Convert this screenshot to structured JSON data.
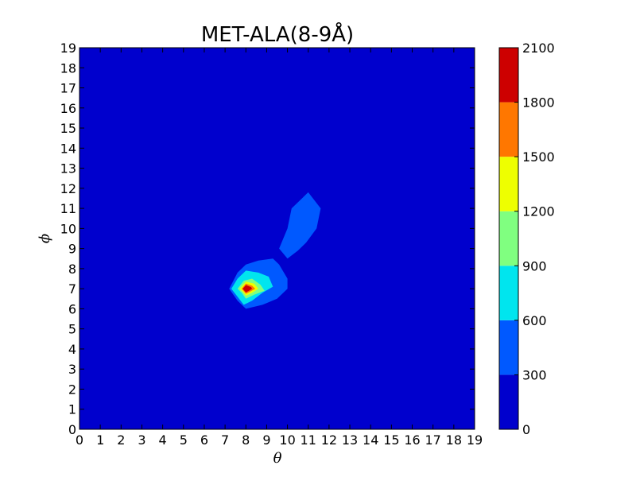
{
  "chart_data": {
    "type": "contourf",
    "title": "MET-ALA(8-9Å)",
    "xlabel": "θ",
    "ylabel": "ϕ",
    "xlim": [
      0,
      19
    ],
    "ylim": [
      0,
      19
    ],
    "xticks": [
      0,
      1,
      2,
      3,
      4,
      5,
      6,
      7,
      8,
      9,
      10,
      11,
      12,
      13,
      14,
      15,
      16,
      17,
      18,
      19
    ],
    "yticks": [
      0,
      1,
      2,
      3,
      4,
      5,
      6,
      7,
      8,
      9,
      10,
      11,
      12,
      13,
      14,
      15,
      16,
      17,
      18,
      19
    ],
    "grid": false,
    "colorbar": {
      "ticks": [
        0,
        300,
        600,
        900,
        1200,
        1500,
        1800,
        2100
      ],
      "levels": [
        0,
        300,
        600,
        900,
        1200,
        1500,
        1800,
        2100
      ],
      "colors": [
        "#0000cd",
        "#0059ff",
        "#00e5ee",
        "#80ff80",
        "#eeff00",
        "#ff7700",
        "#cd0000"
      ]
    },
    "contour_regions": [
      {
        "level_index": 1,
        "range": [
          300,
          600
        ],
        "polygon": [
          [
            7.2,
            7.0
          ],
          [
            7.6,
            7.8
          ],
          [
            8.0,
            8.2
          ],
          [
            8.6,
            8.4
          ],
          [
            9.3,
            8.5
          ],
          [
            9.6,
            8.2
          ],
          [
            10.0,
            7.5
          ],
          [
            10.0,
            7.0
          ],
          [
            9.5,
            6.5
          ],
          [
            8.8,
            6.2
          ],
          [
            8.0,
            6.0
          ],
          [
            7.6,
            6.4
          ]
        ]
      },
      {
        "level_index": 1,
        "range": [
          300,
          600
        ],
        "polygon": [
          [
            9.6,
            9.0
          ],
          [
            10.0,
            10.0
          ],
          [
            10.2,
            11.0
          ],
          [
            10.7,
            11.5
          ],
          [
            11.0,
            11.8
          ],
          [
            11.6,
            11.0
          ],
          [
            11.4,
            10.0
          ],
          [
            10.9,
            9.3
          ],
          [
            10.5,
            8.9
          ],
          [
            10.0,
            8.5
          ]
        ]
      },
      {
        "level_index": 2,
        "range": [
          600,
          900
        ],
        "polygon": [
          [
            7.3,
            7.0
          ],
          [
            7.6,
            7.5
          ],
          [
            8.0,
            7.9
          ],
          [
            8.6,
            7.8
          ],
          [
            9.1,
            7.6
          ],
          [
            9.3,
            7.1
          ],
          [
            8.8,
            6.8
          ],
          [
            8.3,
            6.4
          ],
          [
            7.9,
            6.2
          ],
          [
            7.6,
            6.6
          ]
        ]
      },
      {
        "level_index": 3,
        "range": [
          900,
          1200
        ],
        "polygon": [
          [
            7.6,
            7.0
          ],
          [
            7.9,
            7.4
          ],
          [
            8.3,
            7.5
          ],
          [
            8.7,
            7.2
          ],
          [
            8.9,
            6.9
          ],
          [
            8.4,
            6.7
          ],
          [
            8.0,
            6.5
          ],
          [
            7.8,
            6.8
          ]
        ]
      },
      {
        "level_index": 4,
        "range": [
          1200,
          1500
        ],
        "polygon": [
          [
            7.7,
            7.0
          ],
          [
            8.0,
            7.35
          ],
          [
            8.4,
            7.25
          ],
          [
            8.6,
            7.0
          ],
          [
            8.3,
            6.8
          ],
          [
            8.0,
            6.65
          ],
          [
            7.85,
            6.85
          ]
        ]
      },
      {
        "level_index": 5,
        "range": [
          1500,
          1800
        ],
        "polygon": [
          [
            7.8,
            7.0
          ],
          [
            8.0,
            7.25
          ],
          [
            8.3,
            7.15
          ],
          [
            8.45,
            7.0
          ],
          [
            8.2,
            6.85
          ],
          [
            8.0,
            6.75
          ]
        ]
      },
      {
        "level_index": 6,
        "range": [
          1800,
          2100
        ],
        "polygon": [
          [
            7.85,
            7.0
          ],
          [
            8.0,
            7.18
          ],
          [
            8.25,
            7.08
          ],
          [
            8.3,
            7.0
          ],
          [
            8.15,
            6.9
          ],
          [
            8.0,
            6.82
          ]
        ]
      }
    ]
  }
}
